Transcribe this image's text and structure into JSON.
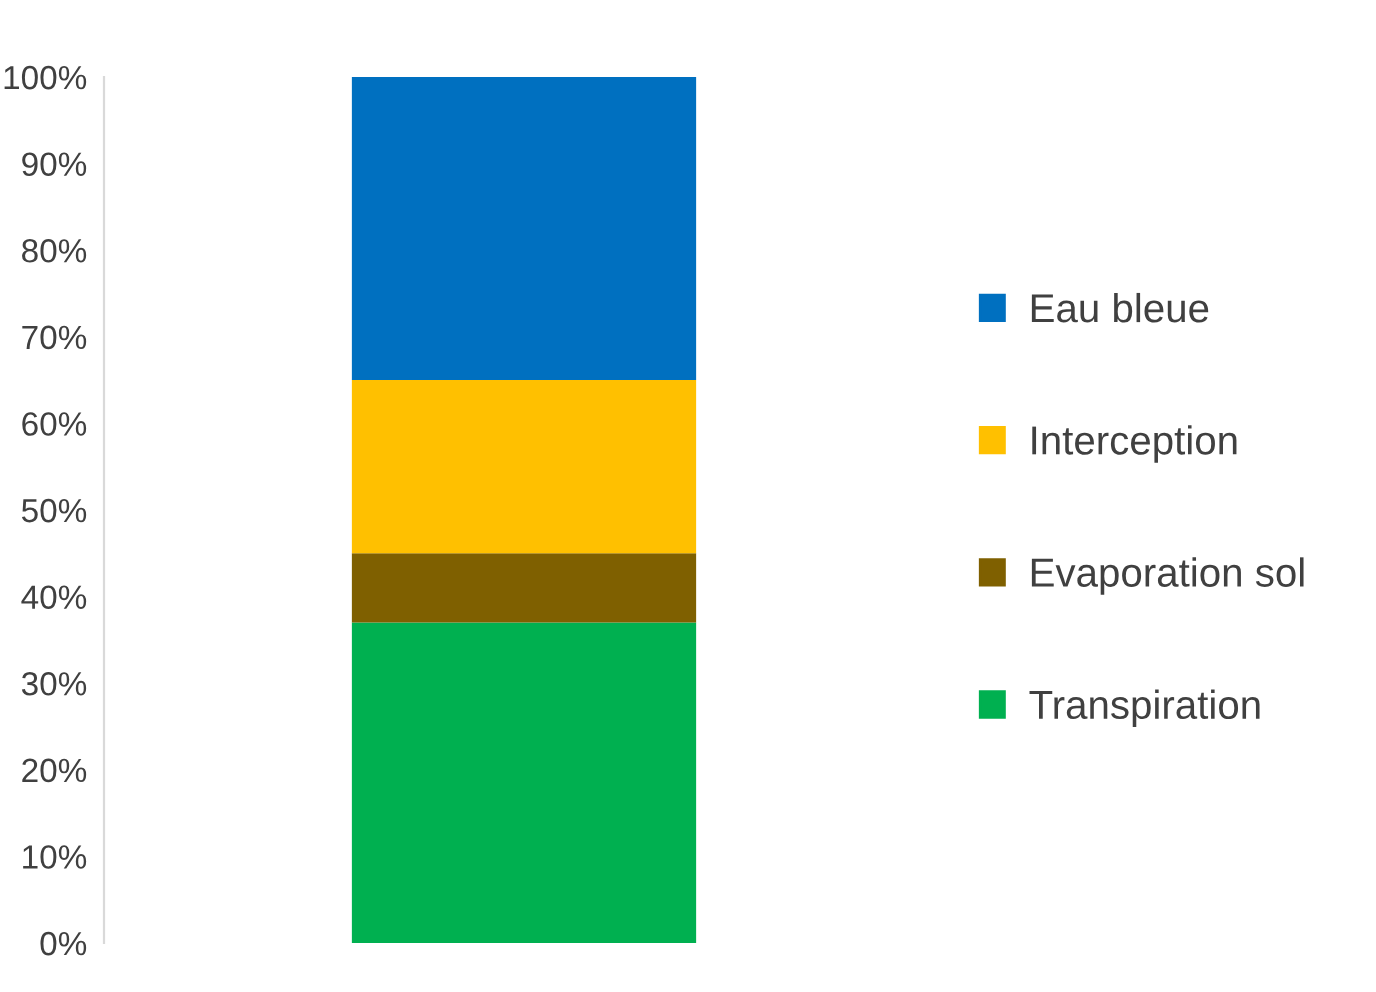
{
  "chart_data": {
    "type": "bar",
    "stacked": true,
    "categories": [
      null
    ],
    "series": [
      {
        "name": "Transpiration",
        "color": "#00b050",
        "values": [
          37
        ]
      },
      {
        "name": "Evaporation sol",
        "color": "#7f6000",
        "values": [
          8
        ]
      },
      {
        "name": "Interception",
        "color": "#ffc000",
        "values": [
          20
        ]
      },
      {
        "name": "Eau bleue",
        "color": "#0070c0",
        "values": [
          35
        ]
      }
    ],
    "ylim": [
      0,
      100
    ],
    "yticks": [
      {
        "value": 0,
        "label": "0%"
      },
      {
        "value": 10,
        "label": "10%"
      },
      {
        "value": 20,
        "label": "20%"
      },
      {
        "value": 30,
        "label": "30%"
      },
      {
        "value": 40,
        "label": "40%"
      },
      {
        "value": 50,
        "label": "50%"
      },
      {
        "value": 60,
        "label": "60%"
      },
      {
        "value": 70,
        "label": "70%"
      },
      {
        "value": 80,
        "label": "80%"
      },
      {
        "value": 90,
        "label": "90%"
      },
      {
        "value": 100,
        "label": "100%"
      }
    ],
    "tick_labels": "y",
    "grid": false,
    "legend": "right"
  }
}
